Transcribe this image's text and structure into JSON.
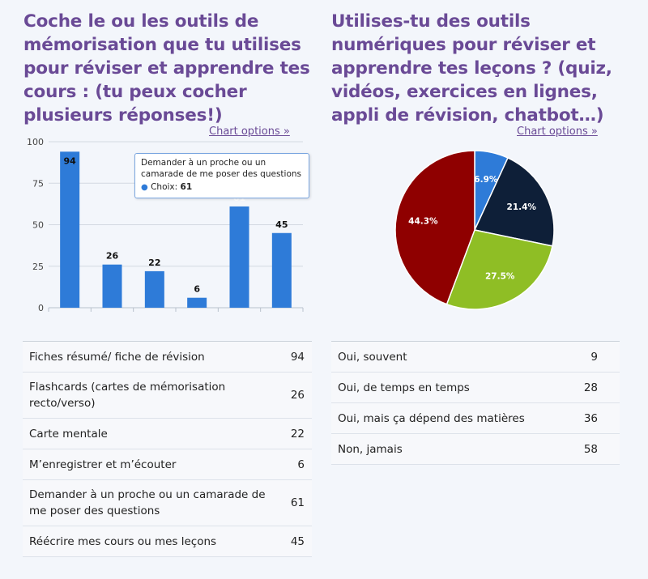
{
  "left": {
    "question": "Coche le ou les outils de mémorisation que tu utilises pour réviser et apprendre tes cours : (tu peux cocher plusieurs réponses!)",
    "chart_options": "Chart options »",
    "tooltip": {
      "title": "Demander à un proche ou un camarade de me poser des questions",
      "series_name": "Choix",
      "value": "61"
    },
    "rows": [
      {
        "label": "Fiches résumé/ fiche de révision",
        "count": "94"
      },
      {
        "label": "Flashcards (cartes de mémorisation recto/verso)",
        "count": "26"
      },
      {
        "label": "Carte mentale",
        "count": "22"
      },
      {
        "label": "M’enregistrer et m’écouter",
        "count": "6"
      },
      {
        "label": "Demander à un proche ou un camarade de me poser des questions",
        "count": "61"
      },
      {
        "label": "Réécrire mes cours ou mes leçons",
        "count": "45"
      }
    ]
  },
  "right": {
    "question": "Utilises-tu des outils numériques pour réviser et apprendre tes leçons ? (quiz, vidéos, exercices en lignes, appli de révision, chatbot…)",
    "chart_options": "Chart options »",
    "rows": [
      {
        "label": "Oui, souvent",
        "count": "9"
      },
      {
        "label": "Oui, de temps en temps",
        "count": "28"
      },
      {
        "label": "Oui, mais ça dépend des matières",
        "count": "36"
      },
      {
        "label": "Non, jamais",
        "count": "58"
      }
    ]
  },
  "chart_data": [
    {
      "type": "bar",
      "categories": [
        "Fiches résumé/ fiche de révision",
        "Flashcards (cartes de mémorisation recto/verso)",
        "Carte mentale",
        "M’enregistrer et m’écouter",
        "Demander à un proche ou un camarade de me poser des questions",
        "Réécrire mes cours ou mes leçons"
      ],
      "values": [
        94,
        26,
        22,
        6,
        61,
        45
      ],
      "series_name": "Choix",
      "ylim": [
        0,
        100
      ],
      "yticks": [
        0,
        25,
        50,
        75,
        100
      ],
      "grid": true,
      "bar_color": "#2e7bd8",
      "highlighted_index": 4
    },
    {
      "type": "pie",
      "categories": [
        "Oui, souvent",
        "Oui, de temps en temps",
        "Oui, mais ça dépend des matières",
        "Non, jamais"
      ],
      "values": [
        9,
        28,
        36,
        58
      ],
      "labels": [
        "6.9%",
        "21.4%",
        "27.5%",
        "44.3%"
      ],
      "colors": [
        "#2e7bd8",
        "#0e1f38",
        "#8fbe25",
        "#8f0000"
      ]
    }
  ]
}
